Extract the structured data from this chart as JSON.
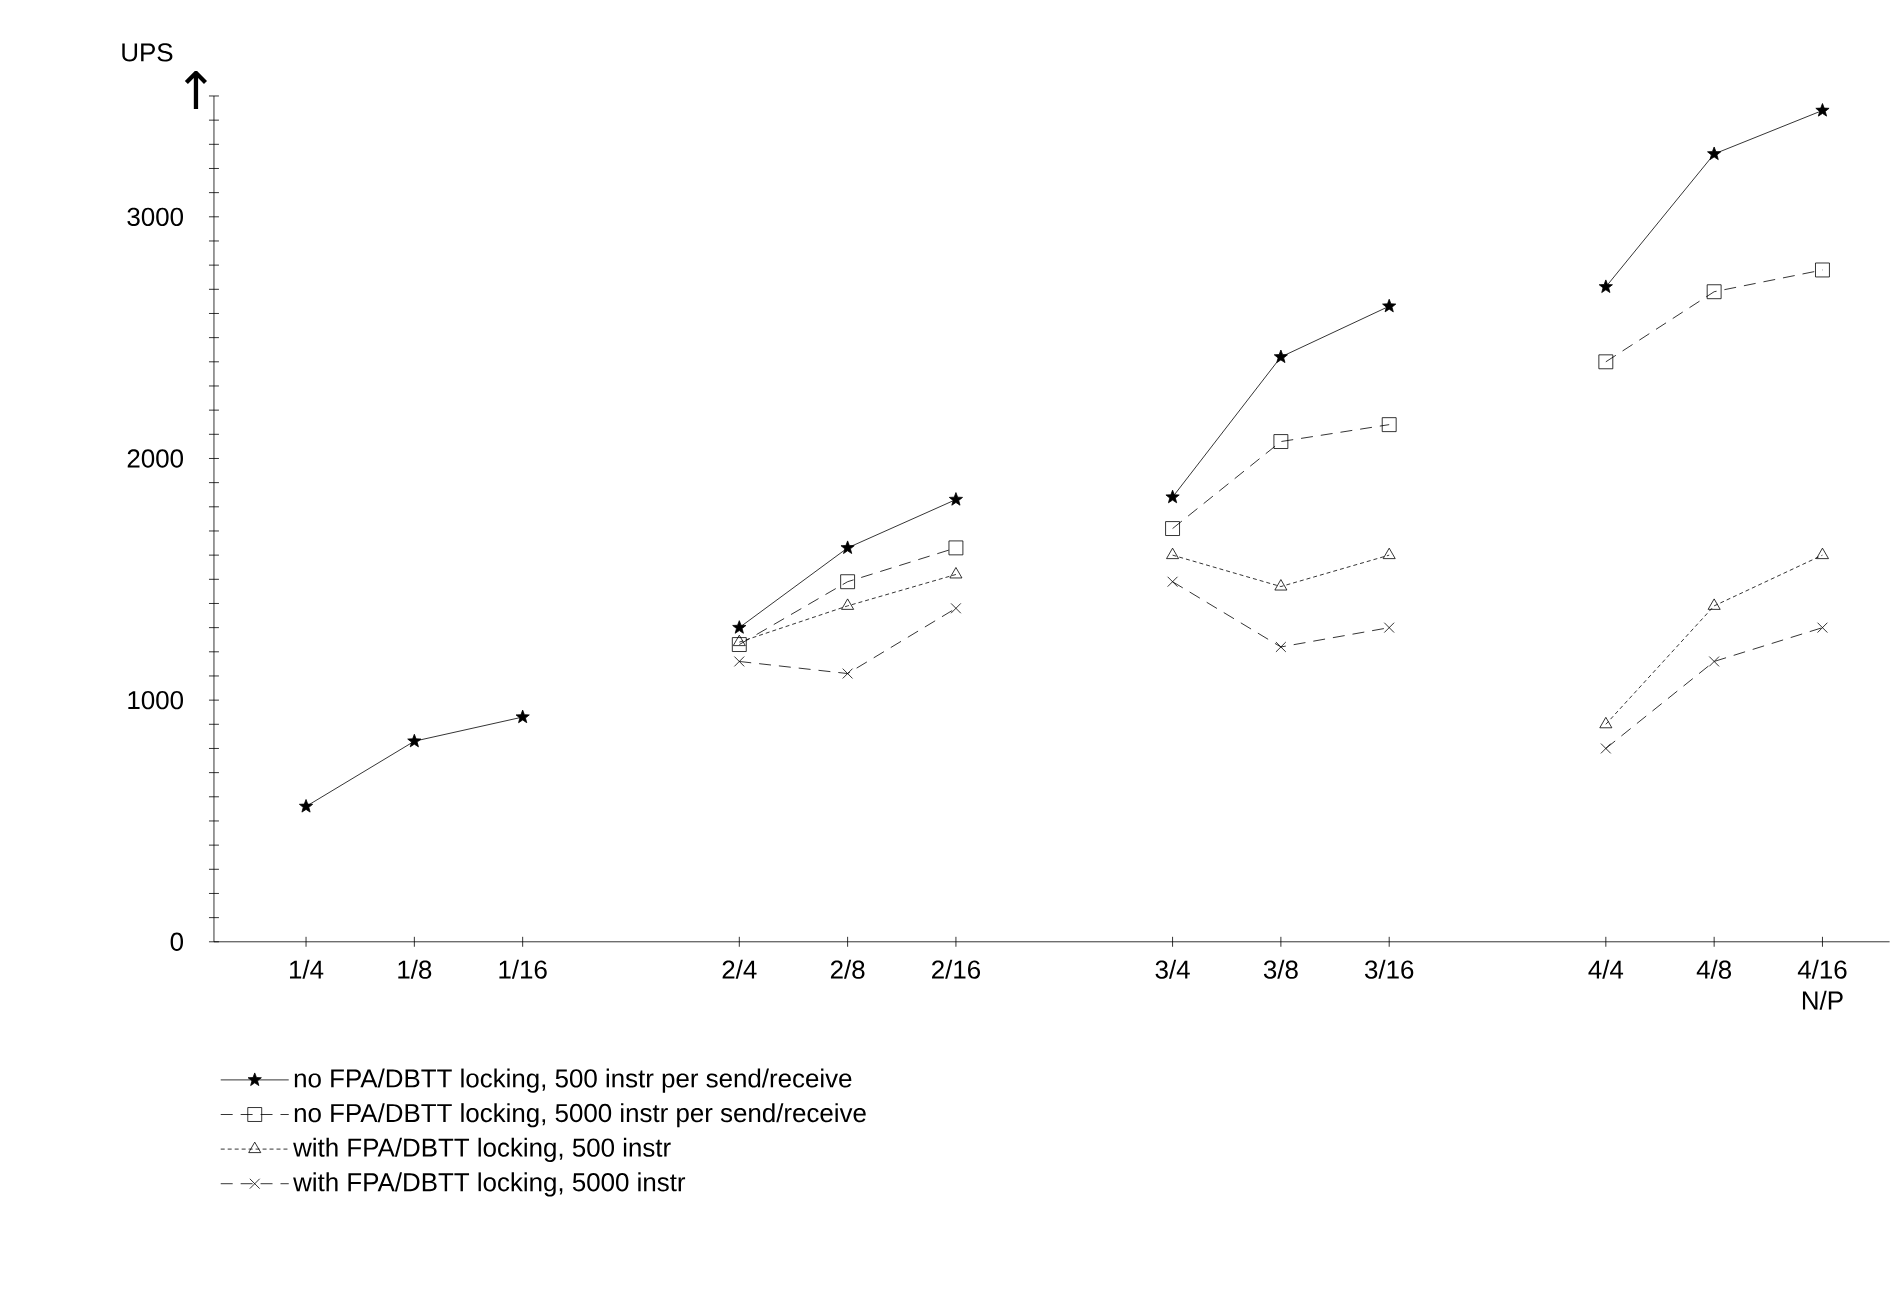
{
  "chart_data": {
    "type": "line",
    "ylabel": "UPS",
    "xlabel": "N/P",
    "annotations": [
      "↑"
    ],
    "categories": [
      "1/4",
      "1/8",
      "1/16",
      null,
      "2/4",
      "2/8",
      "2/16",
      null,
      "3/4",
      "3/8",
      "3/16",
      null,
      "4/4",
      "4/8",
      "4/16"
    ],
    "ylim": [
      0,
      3500
    ],
    "yticks": [
      0,
      {
        "value": 100,
        "label": null
      },
      {
        "value": 200,
        "label": null
      },
      {
        "value": 300,
        "label": null
      },
      {
        "value": 400,
        "label": null
      },
      {
        "value": 500,
        "label": null
      },
      {
        "value": 600,
        "label": null
      },
      {
        "value": 700,
        "label": null
      },
      {
        "value": 800,
        "label": null
      },
      {
        "value": 900,
        "label": null
      },
      1000,
      {
        "value": 1100,
        "label": null
      },
      {
        "value": 1200,
        "label": null
      },
      {
        "value": 1300,
        "label": null
      },
      {
        "value": 1400,
        "label": null
      },
      {
        "value": 1500,
        "label": null
      },
      {
        "value": 1600,
        "label": null
      },
      {
        "value": 1700,
        "label": null
      },
      {
        "value": 1800,
        "label": null
      },
      {
        "value": 1900,
        "label": null
      },
      2000,
      {
        "value": 2100,
        "label": null
      },
      {
        "value": 2200,
        "label": null
      },
      {
        "value": 2300,
        "label": null
      },
      {
        "value": 2400,
        "label": null
      },
      {
        "value": 2500,
        "label": null
      },
      {
        "value": 2600,
        "label": null
      },
      {
        "value": 2700,
        "label": null
      },
      {
        "value": 2800,
        "label": null
      },
      {
        "value": 2900,
        "label": null
      },
      3000,
      {
        "value": 3100,
        "label": null
      },
      {
        "value": 3200,
        "label": null
      },
      {
        "value": 3300,
        "label": null
      },
      {
        "value": 3400,
        "label": null
      },
      {
        "value": 3500,
        "label": null
      }
    ],
    "legend": "bottom",
    "series": [
      {
        "name": "no FPA/DBTT locking, 500 instr per send/receive",
        "color": "#000000",
        "marker": "star",
        "line_style": "solid",
        "values": [
          560,
          830,
          930,
          null,
          1300,
          1630,
          1830,
          null,
          1840,
          2420,
          2630,
          null,
          2710,
          3260,
          3440
        ]
      },
      {
        "name": "no FPA/DBTT locking, 5000 instr per send/receive",
        "color": "#000000",
        "marker": "square",
        "line_style": "dashed",
        "values": [
          null,
          null,
          null,
          null,
          1230,
          1490,
          1630,
          null,
          1710,
          2070,
          2140,
          null,
          2400,
          2690,
          2780
        ]
      },
      {
        "name": "with FPA/DBTT locking, 500 instr",
        "color": "#000000",
        "marker": "triangle",
        "line_style": "dotted",
        "values": [
          null,
          null,
          null,
          null,
          1240,
          1390,
          1520,
          null,
          1600,
          1470,
          1600,
          null,
          900,
          1390,
          1600
        ]
      },
      {
        "name": "with FPA/DBTT locking, 5000 instr",
        "color": "#000000",
        "marker": "cross",
        "line_style": "dashed",
        "values": [
          null,
          null,
          null,
          null,
          1160,
          1110,
          1380,
          null,
          1490,
          1220,
          1300,
          null,
          800,
          1160,
          1300
        ]
      }
    ]
  }
}
